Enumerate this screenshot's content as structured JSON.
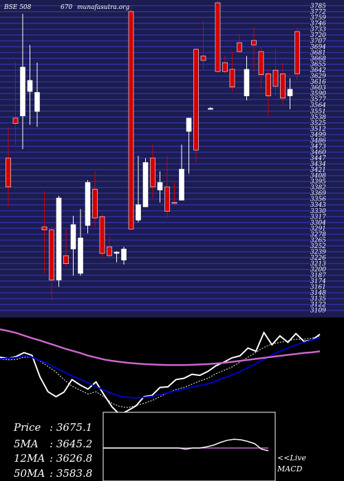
{
  "header": {
    "left": "BSE 508",
    "code": "670",
    "site": "munafasutra.org"
  },
  "stats": [
    {
      "label": "Price",
      "value": ": 3675.1"
    },
    {
      "label": "5MA",
      "value": ": 3645.2"
    },
    {
      "label": "12MA",
      "value": ": 3626.8"
    },
    {
      "label": "50MA",
      "value": ": 3583.8"
    }
  ],
  "macd_label": {
    "line1": "<<Live",
    "line2": "MACD"
  },
  "colors": {
    "background": "#000000",
    "price_panel": "#1c1c4e",
    "gridline": "#2e2ea0",
    "bull_candle": "#ffffff",
    "bear_candle": "#d40000",
    "price_line": "#ffffff",
    "ma_short": "#ffffff",
    "ma_mid": "#0000cc",
    "ma_long": "#cc66cc",
    "macd_line": "#ffffff",
    "macd_signal": "#cc66cc"
  },
  "chart_data": [
    {
      "type": "candlestick",
      "title": "BSE 508670",
      "ylim": [
        3100,
        3800
      ],
      "grid": true,
      "tick_labels": [
        "3785",
        "3772",
        "3759",
        "3746",
        "3733",
        "3720",
        "3707",
        "3694",
        "3681",
        "3668",
        "3655",
        "3642",
        "3629",
        "3616",
        "3603",
        "3590",
        "3577",
        "3564",
        "3551",
        "3538",
        "3525",
        "3512",
        "3499",
        "3486",
        "3473",
        "3460",
        "3447",
        "3434",
        "3421",
        "3408",
        "3395",
        "3382",
        "3369",
        "3356",
        "3343",
        "3330",
        "3317",
        "3304",
        "3291",
        "3278",
        "3265",
        "3252",
        "3239",
        "3226",
        "3213",
        "3200",
        "3187",
        "3174",
        "3161",
        "3148",
        "3135",
        "3122",
        "3109"
      ],
      "candles": [
        {
          "o": 3450,
          "h": 3520,
          "l": 3340,
          "c": 3385
        },
        {
          "o": 3540,
          "h": 3665,
          "l": 3480,
          "c": 3528
        },
        {
          "o": 3545,
          "h": 3775,
          "l": 3470,
          "c": 3655
        },
        {
          "o": 3600,
          "h": 3705,
          "l": 3525,
          "c": 3625
        },
        {
          "o": 3555,
          "h": 3665,
          "l": 3520,
          "c": 3598
        },
        {
          "o": 3295,
          "h": 3375,
          "l": 3190,
          "c": 3288
        },
        {
          "o": 3288,
          "h": 3295,
          "l": 3130,
          "c": 3175
        },
        {
          "o": 3175,
          "h": 3365,
          "l": 3160,
          "c": 3360
        },
        {
          "o": 3230,
          "h": 3290,
          "l": 3205,
          "c": 3212
        },
        {
          "o": 3245,
          "h": 3320,
          "l": 3185,
          "c": 3300
        },
        {
          "o": 3190,
          "h": 3335,
          "l": 3185,
          "c": 3270
        },
        {
          "o": 3298,
          "h": 3400,
          "l": 3280,
          "c": 3395
        },
        {
          "o": 3380,
          "h": 3420,
          "l": 3295,
          "c": 3315
        },
        {
          "o": 3318,
          "h": 3325,
          "l": 3225,
          "c": 3235
        },
        {
          "o": 3250,
          "h": 3275,
          "l": 3225,
          "c": 3230
        },
        {
          "o": 3235,
          "h": 3240,
          "l": 3215,
          "c": 3238
        },
        {
          "o": 3220,
          "h": 3250,
          "l": 3210,
          "c": 3245
        },
        {
          "o": 3780,
          "h": 3790,
          "l": 3290,
          "c": 3290
        },
        {
          "o": 3310,
          "h": 3455,
          "l": 3305,
          "c": 3345
        },
        {
          "o": 3340,
          "h": 3450,
          "l": 3340,
          "c": 3440
        },
        {
          "o": 3450,
          "h": 3480,
          "l": 3360,
          "c": 3385
        },
        {
          "o": 3378,
          "h": 3420,
          "l": 3350,
          "c": 3395
        },
        {
          "o": 3385,
          "h": 3455,
          "l": 3315,
          "c": 3330
        },
        {
          "o": 3350,
          "h": 3395,
          "l": 3345,
          "c": 3348
        },
        {
          "o": 3355,
          "h": 3480,
          "l": 3355,
          "c": 3425
        },
        {
          "o": 3510,
          "h": 3540,
          "l": 3415,
          "c": 3540
        },
        {
          "o": 3695,
          "h": 3700,
          "l": 3440,
          "c": 3468
        },
        {
          "o": 3680,
          "h": 3760,
          "l": 3650,
          "c": 3670
        },
        {
          "o": 3560,
          "h": 3565,
          "l": 3560,
          "c": 3562
        },
        {
          "o": 3800,
          "h": 3810,
          "l": 3645,
          "c": 3645
        },
        {
          "o": 3665,
          "h": 3680,
          "l": 3640,
          "c": 3645
        },
        {
          "o": 3650,
          "h": 3690,
          "l": 3600,
          "c": 3610
        },
        {
          "o": 3710,
          "h": 3730,
          "l": 3685,
          "c": 3690
        },
        {
          "o": 3590,
          "h": 3680,
          "l": 3580,
          "c": 3650
        },
        {
          "o": 3715,
          "h": 3745,
          "l": 3645,
          "c": 3705
        },
        {
          "o": 3690,
          "h": 3700,
          "l": 3605,
          "c": 3638
        },
        {
          "o": 3640,
          "h": 3650,
          "l": 3545,
          "c": 3590
        },
        {
          "o": 3648,
          "h": 3695,
          "l": 3590,
          "c": 3612
        },
        {
          "o": 3640,
          "h": 3665,
          "l": 3570,
          "c": 3585
        },
        {
          "o": 3590,
          "h": 3630,
          "l": 3560,
          "c": 3605
        },
        {
          "o": 3735,
          "h": 3745,
          "l": 3625,
          "c": 3640
        }
      ]
    },
    {
      "type": "line",
      "series": [
        {
          "values": [
            3560,
            3556,
            3562,
            3574,
            3566,
            3500,
            3455,
            3440,
            3454,
            3492,
            3476,
            3463,
            3485,
            3446,
            3409,
            3385,
            3398,
            3412,
            3440,
            3444,
            3468,
            3470,
            3492,
            3496,
            3508,
            3505,
            3517,
            3534,
            3545,
            3558,
            3564,
            3588,
            3578,
            3635,
            3598,
            3625,
            3605,
            3632,
            3608,
            3612,
            3630
          ]
        },
        {
          "values": [
            3554,
            3552,
            3553,
            3560,
            3560,
            3548,
            3532,
            3515,
            3492,
            3472,
            3460,
            3448,
            3455,
            3440,
            3420,
            3410,
            3407,
            3413,
            3420,
            3428,
            3440,
            3452,
            3462,
            3468,
            3478,
            3488,
            3496,
            3510,
            3520,
            3530,
            3545,
            3560,
            3575,
            3590,
            3600,
            3605,
            3610,
            3615,
            3615,
            3618,
            3625
          ]
        },
        {
          "values": [
            3555,
            3556,
            3559,
            3565,
            3560,
            3550,
            3540,
            3527,
            3515,
            3503,
            3493,
            3482,
            3470,
            3460,
            3450,
            3441,
            3438,
            3436,
            3438,
            3441,
            3446,
            3452,
            3458,
            3463,
            3469,
            3474,
            3479,
            3488,
            3497,
            3506,
            3516,
            3528,
            3541,
            3554,
            3567,
            3578,
            3588,
            3598,
            3605,
            3612,
            3620
          ]
        },
        {
          "values": [
            3645,
            3640,
            3634,
            3626,
            3618,
            3611,
            3603,
            3595,
            3587,
            3580,
            3573,
            3565,
            3559,
            3553,
            3549,
            3546,
            3543,
            3541,
            3539,
            3538,
            3537,
            3536,
            3536,
            3536,
            3537,
            3538,
            3539,
            3541,
            3543,
            3546,
            3549,
            3552,
            3555,
            3558,
            3561,
            3564,
            3567,
            3570,
            3573,
            3575,
            3578
          ]
        }
      ]
    },
    {
      "type": "line",
      "title": "MACD",
      "series": [
        {
          "values": [
            0,
            0,
            0,
            0,
            0,
            0,
            0,
            0,
            0,
            0,
            0,
            0,
            -2,
            0,
            0,
            2,
            5,
            10,
            14,
            16,
            15,
            12,
            8,
            -2,
            -5
          ]
        },
        {
          "values": [
            0,
            0,
            0,
            0,
            0,
            0,
            0,
            0,
            0,
            0,
            0,
            0,
            0,
            0,
            0,
            0,
            0,
            0,
            0,
            0,
            0,
            0,
            0,
            0,
            0
          ]
        }
      ]
    }
  ]
}
